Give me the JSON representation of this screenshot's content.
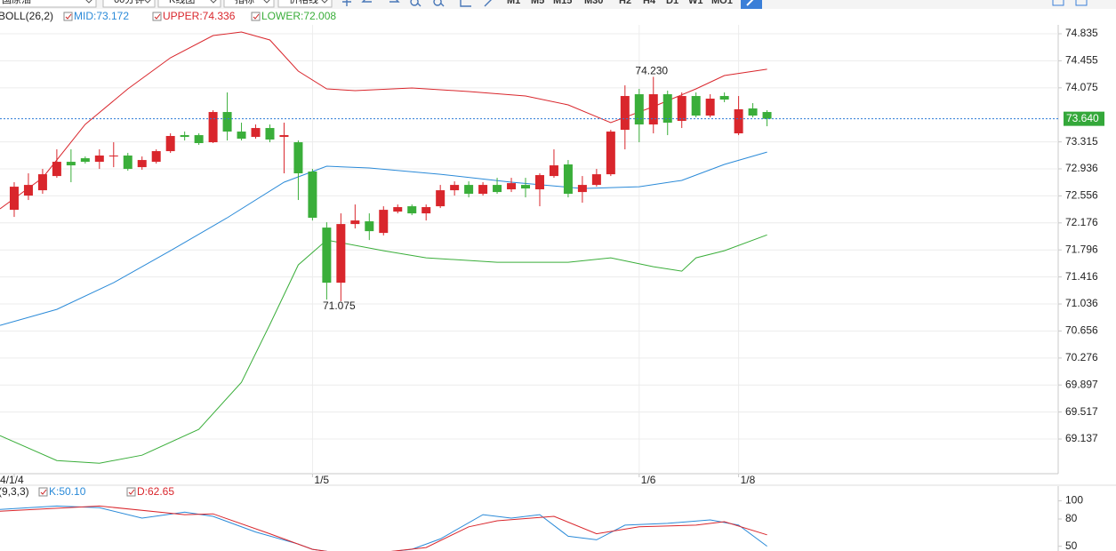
{
  "toolbar": {
    "dropdowns": [
      "国原油",
      "60分钟",
      "K线图",
      "指标",
      "价格线"
    ],
    "timeframes": [
      "M1",
      "M5",
      "M15",
      "M30",
      "H2",
      "H4",
      "D1",
      "W1",
      "MO1"
    ]
  },
  "chart_data": [
    {
      "type": "candlestick",
      "legend": [
        "BOLL(26,2)",
        "MID:73.172",
        "UPPER:74.336",
        "LOWER:72.008"
      ],
      "up_color": "#d9262c",
      "down_color": "#3aae3a",
      "open": [
        72.36,
        72.56,
        72.635,
        72.835,
        73.035,
        73.085,
        73.035,
        73.11,
        73.123,
        72.96,
        73.035,
        73.185,
        73.41,
        73.41,
        73.31,
        73.735,
        73.46,
        73.385,
        73.51,
        73.385,
        73.31,
        72.898,
        72.11,
        71.335,
        72.16,
        72.198,
        72.035,
        72.335,
        72.41,
        72.31,
        72.41,
        72.635,
        72.71,
        72.585,
        72.71,
        72.648,
        72.71,
        72.648,
        72.835,
        72.998,
        72.61,
        72.71,
        72.86,
        73.485,
        73.985,
        73.56,
        73.985,
        73.61,
        73.96,
        73.685,
        73.96,
        73.435,
        73.785,
        73.735
      ],
      "high": [
        72.748,
        72.873,
        72.935,
        73.21,
        73.21,
        73.11,
        73.21,
        73.31,
        73.16,
        73.11,
        73.21,
        73.435,
        73.46,
        73.435,
        73.76,
        74.01,
        73.585,
        73.56,
        73.56,
        73.585,
        73.335,
        72.935,
        72.185,
        72.31,
        72.435,
        72.31,
        72.41,
        72.435,
        72.435,
        72.435,
        72.71,
        72.76,
        72.76,
        72.748,
        72.81,
        72.81,
        72.81,
        72.873,
        73.21,
        73.06,
        72.835,
        72.935,
        73.485,
        74.11,
        74.06,
        74.23,
        74.035,
        74.01,
        74.01,
        73.985,
        74.01,
        73.96,
        73.86,
        73.76
      ],
      "low": [
        72.26,
        72.498,
        72.585,
        72.81,
        72.748,
        73.01,
        72.935,
        72.96,
        72.91,
        72.923,
        73.01,
        73.16,
        73.335,
        73.273,
        73.298,
        73.335,
        73.335,
        73.36,
        73.31,
        72.873,
        72.498,
        72.21,
        71.098,
        71.075,
        72.098,
        71.935,
        72.0,
        72.31,
        72.285,
        72.21,
        72.385,
        72.56,
        72.535,
        72.56,
        72.585,
        72.61,
        72.535,
        72.41,
        72.81,
        72.535,
        72.46,
        72.685,
        72.835,
        73.21,
        73.31,
        73.435,
        73.41,
        73.51,
        73.66,
        73.66,
        73.873,
        73.41,
        73.66,
        73.535
      ],
      "close": [
        72.685,
        72.71,
        72.86,
        73.035,
        72.985,
        73.035,
        73.123,
        73.123,
        72.935,
        73.06,
        73.185,
        73.398,
        73.385,
        73.298,
        73.735,
        73.46,
        73.36,
        73.51,
        73.348,
        73.41,
        72.873,
        72.248,
        71.335,
        72.16,
        72.21,
        72.06,
        72.36,
        72.398,
        72.31,
        72.398,
        72.635,
        72.71,
        72.585,
        72.71,
        72.61,
        72.735,
        72.66,
        72.848,
        72.985,
        72.585,
        72.71,
        72.86,
        73.46,
        73.96,
        73.56,
        73.985,
        73.585,
        73.96,
        73.685,
        73.923,
        73.91,
        73.773,
        73.685,
        73.64
      ],
      "series": [
        {
          "name": "UPPER",
          "color": "#d9262c",
          "x": [
            -1,
            2,
            5,
            8,
            11,
            14,
            16,
            18,
            20,
            22,
            24,
            28,
            32,
            36,
            39,
            42,
            45,
            48,
            50,
            53
          ],
          "values": [
            72.373,
            72.81,
            73.56,
            74.06,
            74.498,
            74.81,
            74.86,
            74.748,
            74.31,
            74.06,
            74.035,
            74.073,
            74.023,
            73.96,
            73.835,
            73.585,
            73.81,
            74.06,
            74.248,
            74.336
          ]
        },
        {
          "name": "MID",
          "color": "#2a8ad8",
          "x": [
            -1,
            3,
            7,
            11,
            15,
            19,
            22,
            25,
            30,
            35,
            40,
            44,
            47,
            50,
            53
          ],
          "values": [
            70.735,
            70.96,
            71.335,
            71.785,
            72.248,
            72.748,
            72.973,
            72.948,
            72.86,
            72.748,
            72.66,
            72.685,
            72.773,
            72.998,
            73.172
          ]
        },
        {
          "name": "LOWER",
          "color": "#3aae3a",
          "x": [
            -1,
            3,
            6,
            9,
            13,
            16,
            18,
            20,
            22,
            26,
            29,
            34,
            39,
            42,
            45,
            47,
            48,
            50,
            53
          ],
          "values": [
            69.185,
            68.835,
            68.798,
            68.91,
            69.273,
            69.935,
            70.748,
            71.585,
            71.935,
            71.785,
            71.685,
            71.623,
            71.623,
            71.685,
            71.56,
            71.498,
            71.685,
            71.785,
            72.008
          ]
        }
      ],
      "annotations": [
        {
          "text": "74.230",
          "x": 45,
          "value": 74.23
        },
        {
          "text": "71.075",
          "x": 23,
          "value": 71.075
        }
      ],
      "last_price": {
        "value": 73.64,
        "label": "73.640"
      },
      "xlim": [
        -1,
        73.5
      ],
      "xticks": [
        {
          "value": 0,
          "label": "4/1/4"
        },
        {
          "value": 21,
          "label": "1/5"
        },
        {
          "value": 44,
          "label": "1/6"
        },
        {
          "value": 51,
          "label": "1/8"
        }
      ],
      "ylim": [
        68.65,
        74.96
      ],
      "yticks": [
        74.835,
        74.455,
        74.075,
        73.315,
        72.936,
        72.556,
        72.176,
        71.796,
        71.416,
        71.036,
        70.656,
        70.276,
        69.897,
        69.517,
        69.137
      ],
      "grid": true
    },
    {
      "type": "line",
      "legend": [
        "(9,3,3)",
        "K:50.10",
        "D:62.65"
      ],
      "series": [
        {
          "name": "K",
          "color": "#2a8ad8",
          "x": [
            -1,
            3,
            6,
            9,
            12,
            14,
            17,
            20,
            21,
            24,
            28,
            30,
            33,
            35,
            37,
            39,
            41,
            43,
            46,
            49,
            51,
            53
          ],
          "values": [
            90.5,
            94.3,
            92.4,
            81.0,
            87.6,
            82.9,
            65.7,
            52.4,
            46.7,
            40,
            46.7,
            58.1,
            84.8,
            81.0,
            84.8,
            61.0,
            57.1,
            73.3,
            75.2,
            79.0,
            73.3,
            50.1
          ]
        },
        {
          "name": "D",
          "color": "#d9262c",
          "x": [
            -1,
            6,
            12,
            14,
            18,
            21,
            24,
            29,
            32,
            34,
            38,
            41,
            44,
            48,
            50,
            53
          ],
          "values": [
            88.6,
            94.3,
            84.8,
            85.7,
            63.8,
            46.7,
            40,
            48.6,
            71.4,
            78.1,
            82.9,
            63.8,
            71.4,
            73.3,
            77.1,
            62.65
          ]
        }
      ],
      "xlim": [
        -1,
        73.5
      ],
      "ylim": [
        44.8,
        116.2
      ],
      "yticks": [
        100,
        80,
        50
      ]
    }
  ]
}
